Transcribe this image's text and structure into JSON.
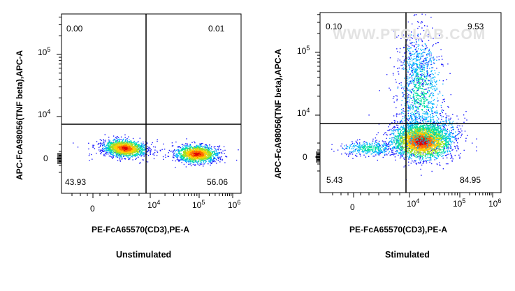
{
  "chart_data": [
    {
      "type": "scatter",
      "subtype": "flow-cytometry density dot plot",
      "caption": "Unstimulated",
      "xlabel": "PE-FcA65570(CD3),PE-A",
      "ylabel": "APC-FcA98056(TNF beta),APC-A",
      "x_scale": "biexponential",
      "y_scale": "biexponential",
      "x_ticks": [
        "0",
        "10^4",
        "10^5",
        "10^6"
      ],
      "y_ticks": [
        "0",
        "10^4",
        "10^5"
      ],
      "gate": {
        "x": 8000,
        "y": 6000
      },
      "quadrants": {
        "upper_left": "0.00",
        "upper_right": "0.01",
        "lower_left": "43.93",
        "lower_right": "56.06"
      },
      "populations": [
        {
          "name": "CD3- cluster",
          "x_center": 2000,
          "y_center": 0
        },
        {
          "name": "CD3+ cluster",
          "x_center": 100000,
          "y_center": 0
        }
      ],
      "colormap": [
        "#1a1aff",
        "#00b4ff",
        "#00e0a0",
        "#a0e020",
        "#ffd000",
        "#ff6a00",
        "#e00000"
      ]
    },
    {
      "type": "scatter",
      "subtype": "flow-cytometry density dot plot",
      "caption": "Stimulated",
      "xlabel": "PE-FcA65570(CD3),PE-A",
      "ylabel": "APC-FcA98056(TNF beta),APC-A",
      "x_scale": "biexponential",
      "y_scale": "biexponential",
      "x_ticks": [
        "0",
        "10^4",
        "10^5",
        "10^6"
      ],
      "y_ticks": [
        "0",
        "10^4",
        "10^5"
      ],
      "gate": {
        "x": 8000,
        "y": 6000
      },
      "quadrants": {
        "upper_left": "0.10",
        "upper_right": "9.53",
        "lower_left": "5.43",
        "lower_right": "84.95"
      },
      "populations": [
        {
          "name": "CD3+ main cluster",
          "x_center": 20000,
          "y_center": 0
        },
        {
          "name": "CD3+ TNF beta+ cells",
          "x_center": 20000,
          "y_center": 30000
        },
        {
          "name": "CD3- tail",
          "x_center": 1000,
          "y_center": 0
        }
      ],
      "watermark": "WWW.PTGLAB.COM",
      "colormap": [
        "#1a1aff",
        "#00b4ff",
        "#00e0a0",
        "#a0e020",
        "#ffd000",
        "#ff6a00",
        "#e00000"
      ]
    }
  ]
}
